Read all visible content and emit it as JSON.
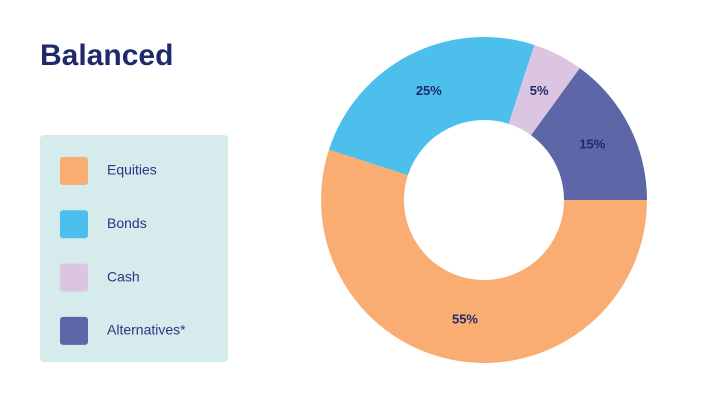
{
  "chart_data": {
    "type": "donut",
    "title": "Balanced",
    "series": [
      {
        "name": "Equities",
        "color": "#f9ad72",
        "values": [
          55
        ],
        "value_labels": [
          "55%"
        ]
      },
      {
        "name": "Bonds",
        "color": "#4dbfec",
        "values": [
          25
        ],
        "value_labels": [
          "25%"
        ]
      },
      {
        "name": "Cash",
        "color": "#dcc5e3",
        "values": [
          5
        ],
        "value_labels": [
          "5%"
        ]
      },
      {
        "name": "Alternatives*",
        "color": "#5d67a8",
        "values": [
          15
        ],
        "value_labels": [
          "15%"
        ]
      }
    ],
    "legend": "left"
  }
}
